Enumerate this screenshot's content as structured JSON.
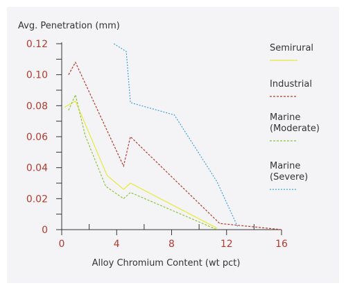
{
  "chart_data": {
    "type": "line",
    "ylabel": "Avg. Penetration (mm)",
    "xlabel": "Alloy Chromium Content (wt pct)",
    "xlim": [
      0,
      16
    ],
    "ylim": [
      0,
      0.12
    ],
    "x_ticks": [
      "0",
      "4",
      "8",
      "12",
      "16"
    ],
    "x_minor_ticks": [
      2,
      6,
      10,
      14
    ],
    "y_ticks": [
      "0",
      "0.02",
      "0.04",
      "0.06",
      "0.08",
      "0.10",
      "0.12"
    ],
    "y_minor_ticks": [
      0.01,
      0.03,
      0.05,
      0.07,
      0.09,
      0.11
    ],
    "legend_position": "right",
    "grid": false,
    "series": [
      {
        "name": "Semirural",
        "color": "#e8e83a",
        "dash": "solid",
        "points": [
          [
            0.2,
            0.079
          ],
          [
            1.0,
            0.083
          ],
          [
            3.3,
            0.035
          ],
          [
            4.5,
            0.026
          ],
          [
            5.0,
            0.03
          ],
          [
            11.3,
            0.001
          ]
        ]
      },
      {
        "name": "Industrial",
        "color": "#b23a2e",
        "dash": "dashed",
        "points": [
          [
            0.5,
            0.1
          ],
          [
            1.0,
            0.108
          ],
          [
            4.5,
            0.041
          ],
          [
            5.0,
            0.06
          ],
          [
            11.5,
            0.004
          ],
          [
            16.0,
            0.0
          ]
        ]
      },
      {
        "name": "Marine\n(Moderate)",
        "color": "#8cc43c",
        "dash": "dashed",
        "points": [
          [
            0.5,
            0.077
          ],
          [
            1.0,
            0.087
          ],
          [
            1.7,
            0.061
          ],
          [
            3.2,
            0.028
          ],
          [
            4.5,
            0.02
          ],
          [
            5.0,
            0.024
          ],
          [
            11.3,
            0.0
          ]
        ]
      },
      {
        "name": "Marine\n(Severe)",
        "color": "#3aa0d8",
        "dash": "dotted",
        "points": [
          [
            3.8,
            0.12
          ],
          [
            4.7,
            0.115
          ],
          [
            5.0,
            0.082
          ],
          [
            8.2,
            0.074
          ],
          [
            11.3,
            0.031
          ],
          [
            12.8,
            0.002
          ]
        ]
      }
    ]
  }
}
